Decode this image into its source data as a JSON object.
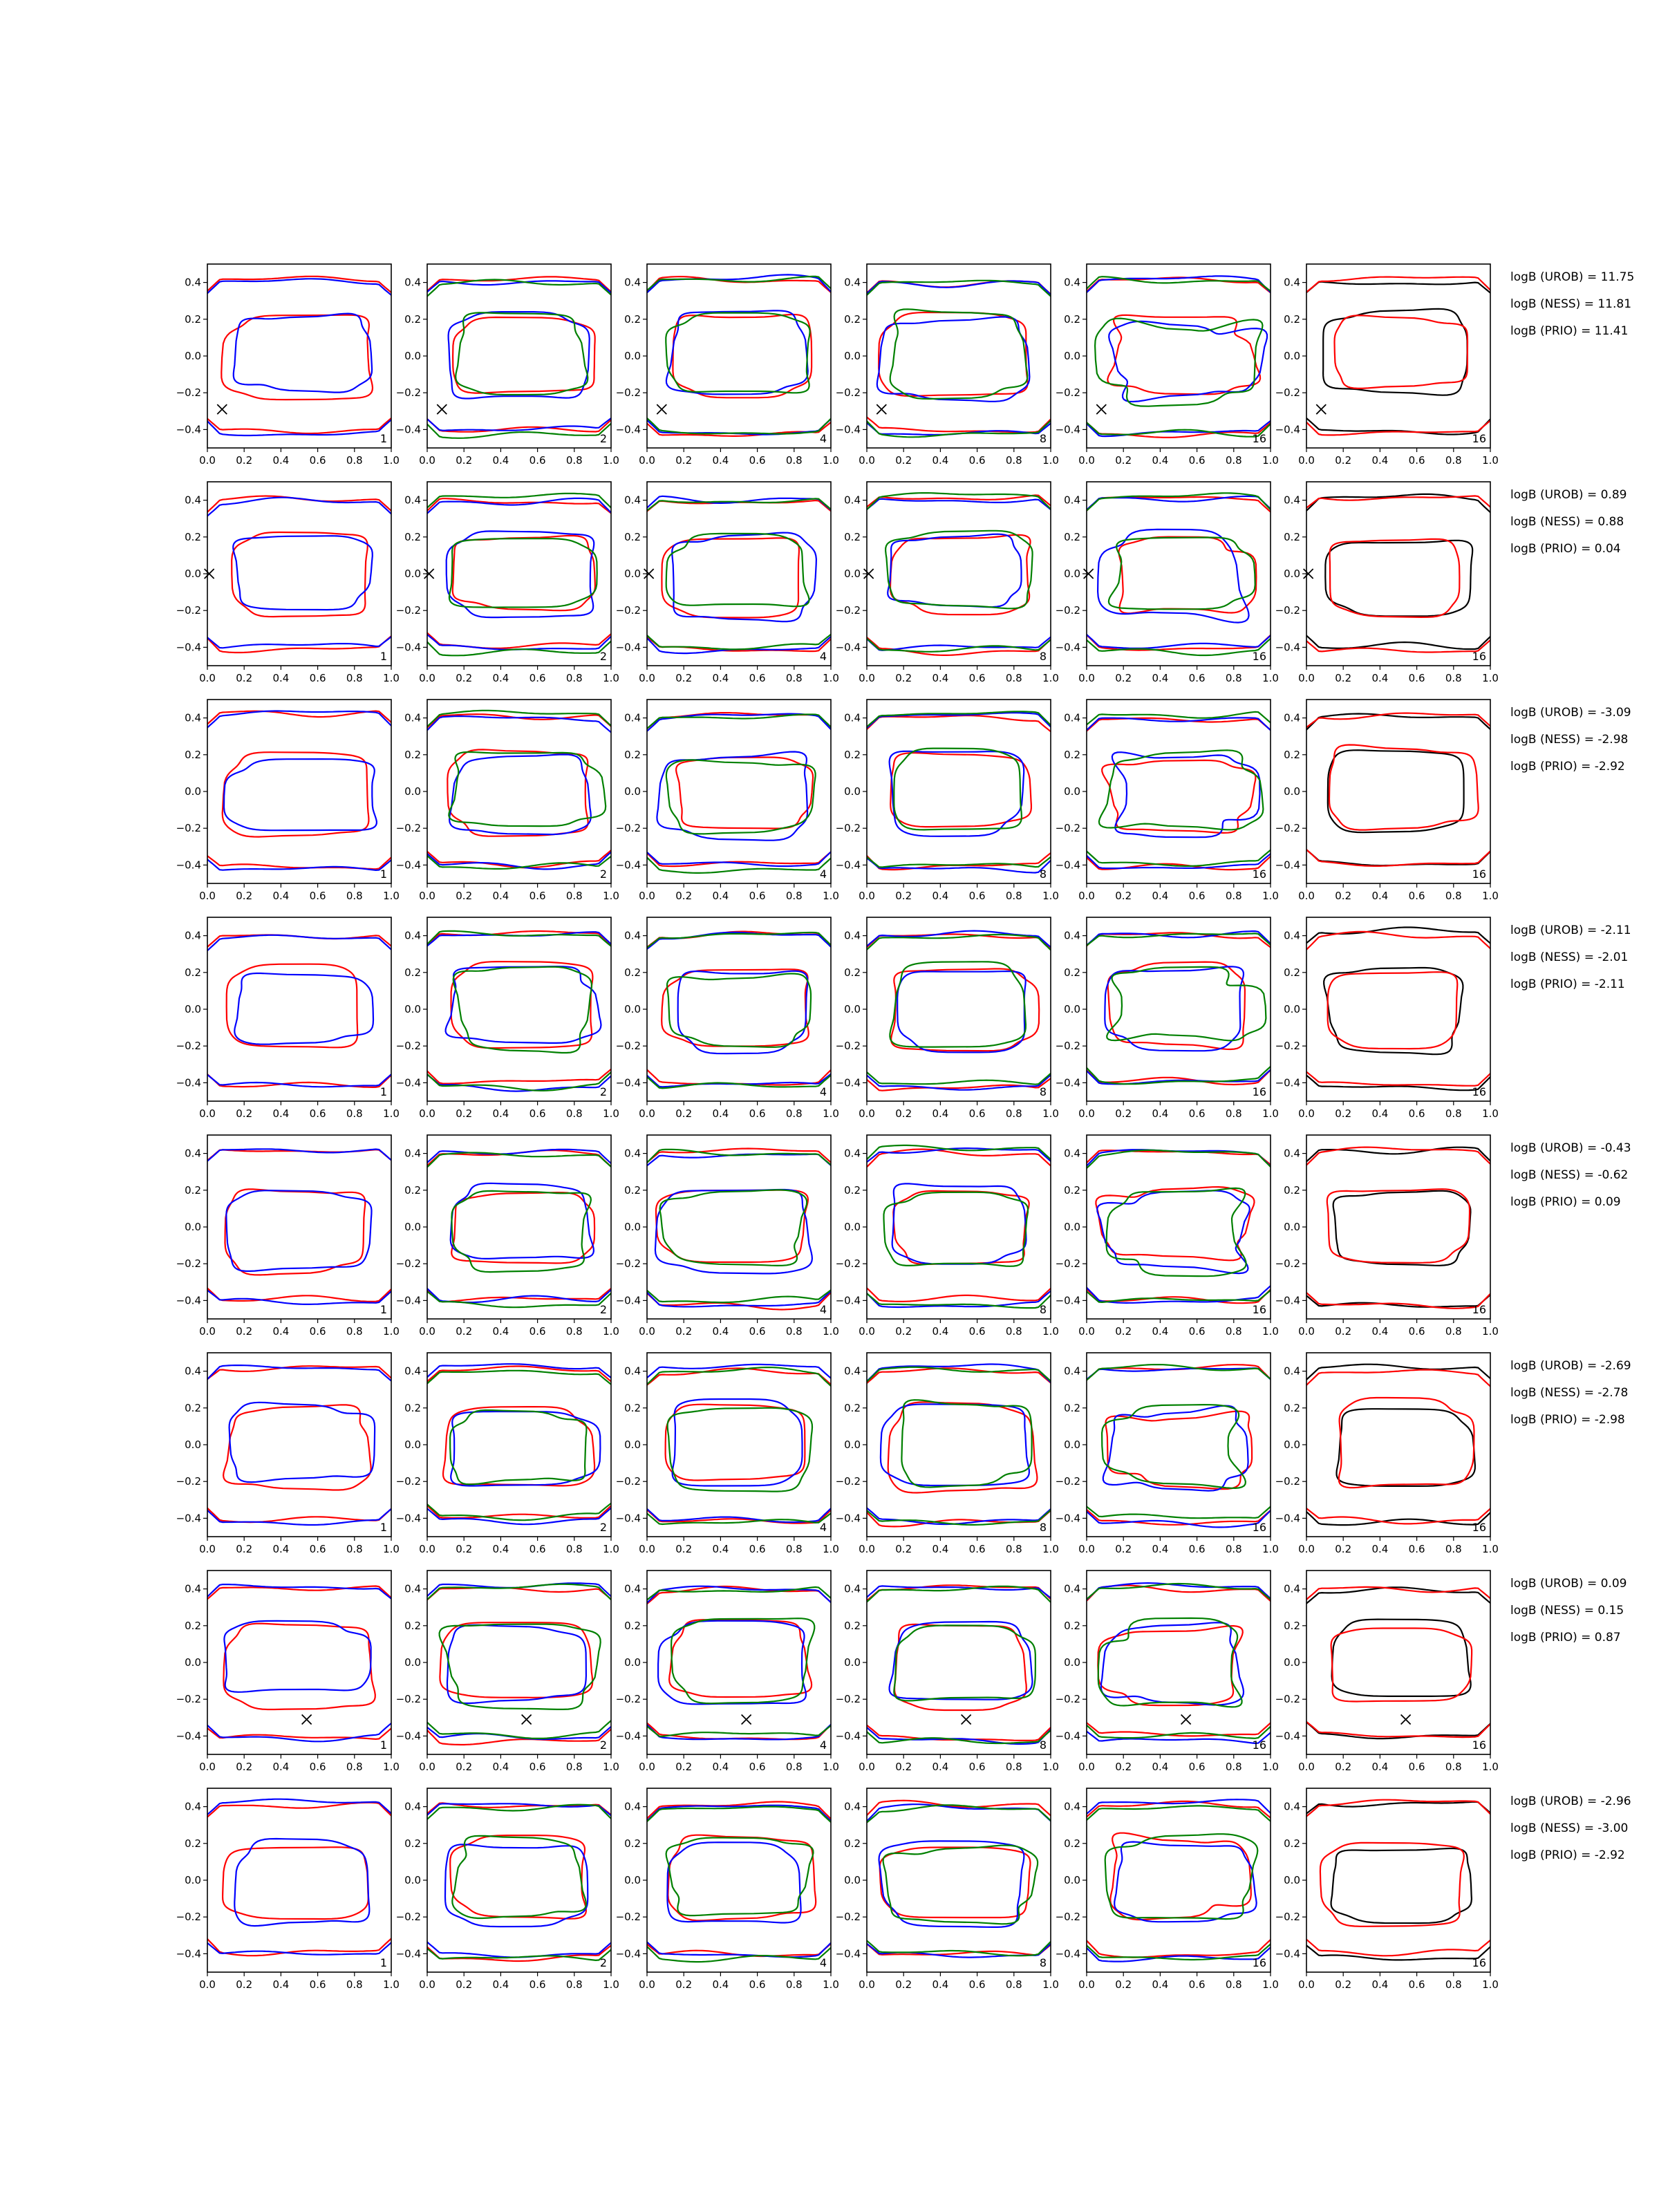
{
  "chart_data": {
    "type": "line",
    "title": "",
    "xlabel": "",
    "ylabel": "",
    "xlim": [
      0.0,
      1.0
    ],
    "ylim": [
      -0.5,
      0.5
    ],
    "x_ticks": [
      "0.0",
      "0.2",
      "0.4",
      "0.6",
      "0.8",
      "1.0"
    ],
    "y_ticks": [
      "−0.4",
      "−0.2",
      "0.0",
      "0.2",
      "0.4"
    ],
    "grid": false,
    "legend": "none",
    "series_colors": {
      "red": "#ff0000",
      "blue": "#0000ff",
      "green": "#008000",
      "black": "#000000"
    },
    "panel_columns": [
      {
        "label": "1",
        "colors": [
          "red",
          "blue"
        ]
      },
      {
        "label": "2",
        "colors": [
          "red",
          "blue",
          "green"
        ]
      },
      {
        "label": "4",
        "colors": [
          "red",
          "blue",
          "green"
        ]
      },
      {
        "label": "8",
        "colors": [
          "red",
          "blue",
          "green"
        ]
      },
      {
        "label": "16",
        "colors": [
          "red",
          "blue",
          "green"
        ]
      },
      {
        "label": "16",
        "colors": [
          "black",
          "red"
        ]
      }
    ],
    "rows": [
      {
        "marker": [
          0.08,
          -0.29
        ],
        "logB": [
          "logB (UROB) = 11.75",
          "logB (NESS) = 11.81",
          "logB (PRIO) = 11.41"
        ]
      },
      {
        "marker": [
          0.01,
          0.0
        ],
        "logB": [
          "logB (UROB) = 0.89",
          "logB (NESS) = 0.88",
          "logB (PRIO) = 0.04"
        ]
      },
      {
        "marker": null,
        "logB": [
          "logB (UROB) = -3.09",
          "logB (NESS) = -2.98",
          "logB (PRIO) = -2.92"
        ]
      },
      {
        "marker": null,
        "logB": [
          "logB (UROB) = -2.11",
          "logB (NESS) = -2.01",
          "logB (PRIO) = -2.11"
        ]
      },
      {
        "marker": null,
        "logB": [
          "logB (UROB) = -0.43",
          "logB (NESS) = -0.62",
          "logB (PRIO) = 0.09"
        ]
      },
      {
        "marker": null,
        "logB": [
          "logB (UROB) = -2.69",
          "logB (NESS) = -2.78",
          "logB (PRIO) = -2.98"
        ]
      },
      {
        "marker": [
          0.54,
          -0.31
        ],
        "logB": [
          "logB (UROB) = 0.09",
          "logB (NESS) = 0.15",
          "logB (PRIO) = 0.87"
        ]
      },
      {
        "marker": null,
        "logB": [
          "logB (UROB) = -2.96",
          "logB (NESS) = -3.00",
          "logB (PRIO) = -2.92"
        ]
      }
    ]
  }
}
